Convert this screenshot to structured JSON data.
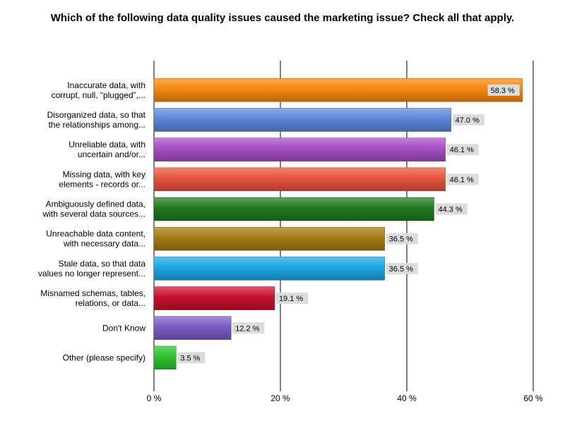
{
  "chart_data": {
    "type": "bar",
    "orientation": "horizontal",
    "title": "Which of the following data quality issues caused the marketing issue? Check all that apply.",
    "categories": [
      [
        "Inaccurate data, with",
        "corrupt, null, “plugged”,..."
      ],
      [
        "Disorganized data, so that",
        "the relationships among..."
      ],
      [
        "Unreliable data, with",
        "uncertain and/or..."
      ],
      [
        "Missing data, with key",
        "elements - records  or..."
      ],
      [
        "Ambiguously defined data,",
        "with several data sources..."
      ],
      [
        "Unreachable data content,",
        "with necessary data..."
      ],
      [
        "Stale data, so that data",
        "values no longer represent..."
      ],
      [
        "Misnamed schemas, tables,",
        "relations, or data..."
      ],
      [
        "Don't Know"
      ],
      [
        "Other (please specify)"
      ]
    ],
    "values": [
      58.3,
      47.0,
      46.1,
      46.1,
      44.3,
      36.5,
      36.5,
      19.1,
      12.2,
      3.5
    ],
    "value_labels": [
      "58.3 %",
      "47.0 %",
      "46.1 %",
      "46.1 %",
      "44.3 %",
      "36.5 %",
      "36.5 %",
      "19.1 %",
      "12.2 %",
      "3.5 %"
    ],
    "colors": [
      "#f5870e",
      "#5b86d8",
      "#a64dc4",
      "#e5543e",
      "#1f7a1f",
      "#a57a12",
      "#1aa6e4",
      "#c8102e",
      "#7b5cc4",
      "#2ec02e"
    ],
    "xlim": [
      0,
      60
    ],
    "xticks": [
      0,
      20,
      40,
      60
    ],
    "xtick_labels": [
      "0 %",
      "20 %",
      "40 %",
      "60 %"
    ],
    "grid": true
  }
}
